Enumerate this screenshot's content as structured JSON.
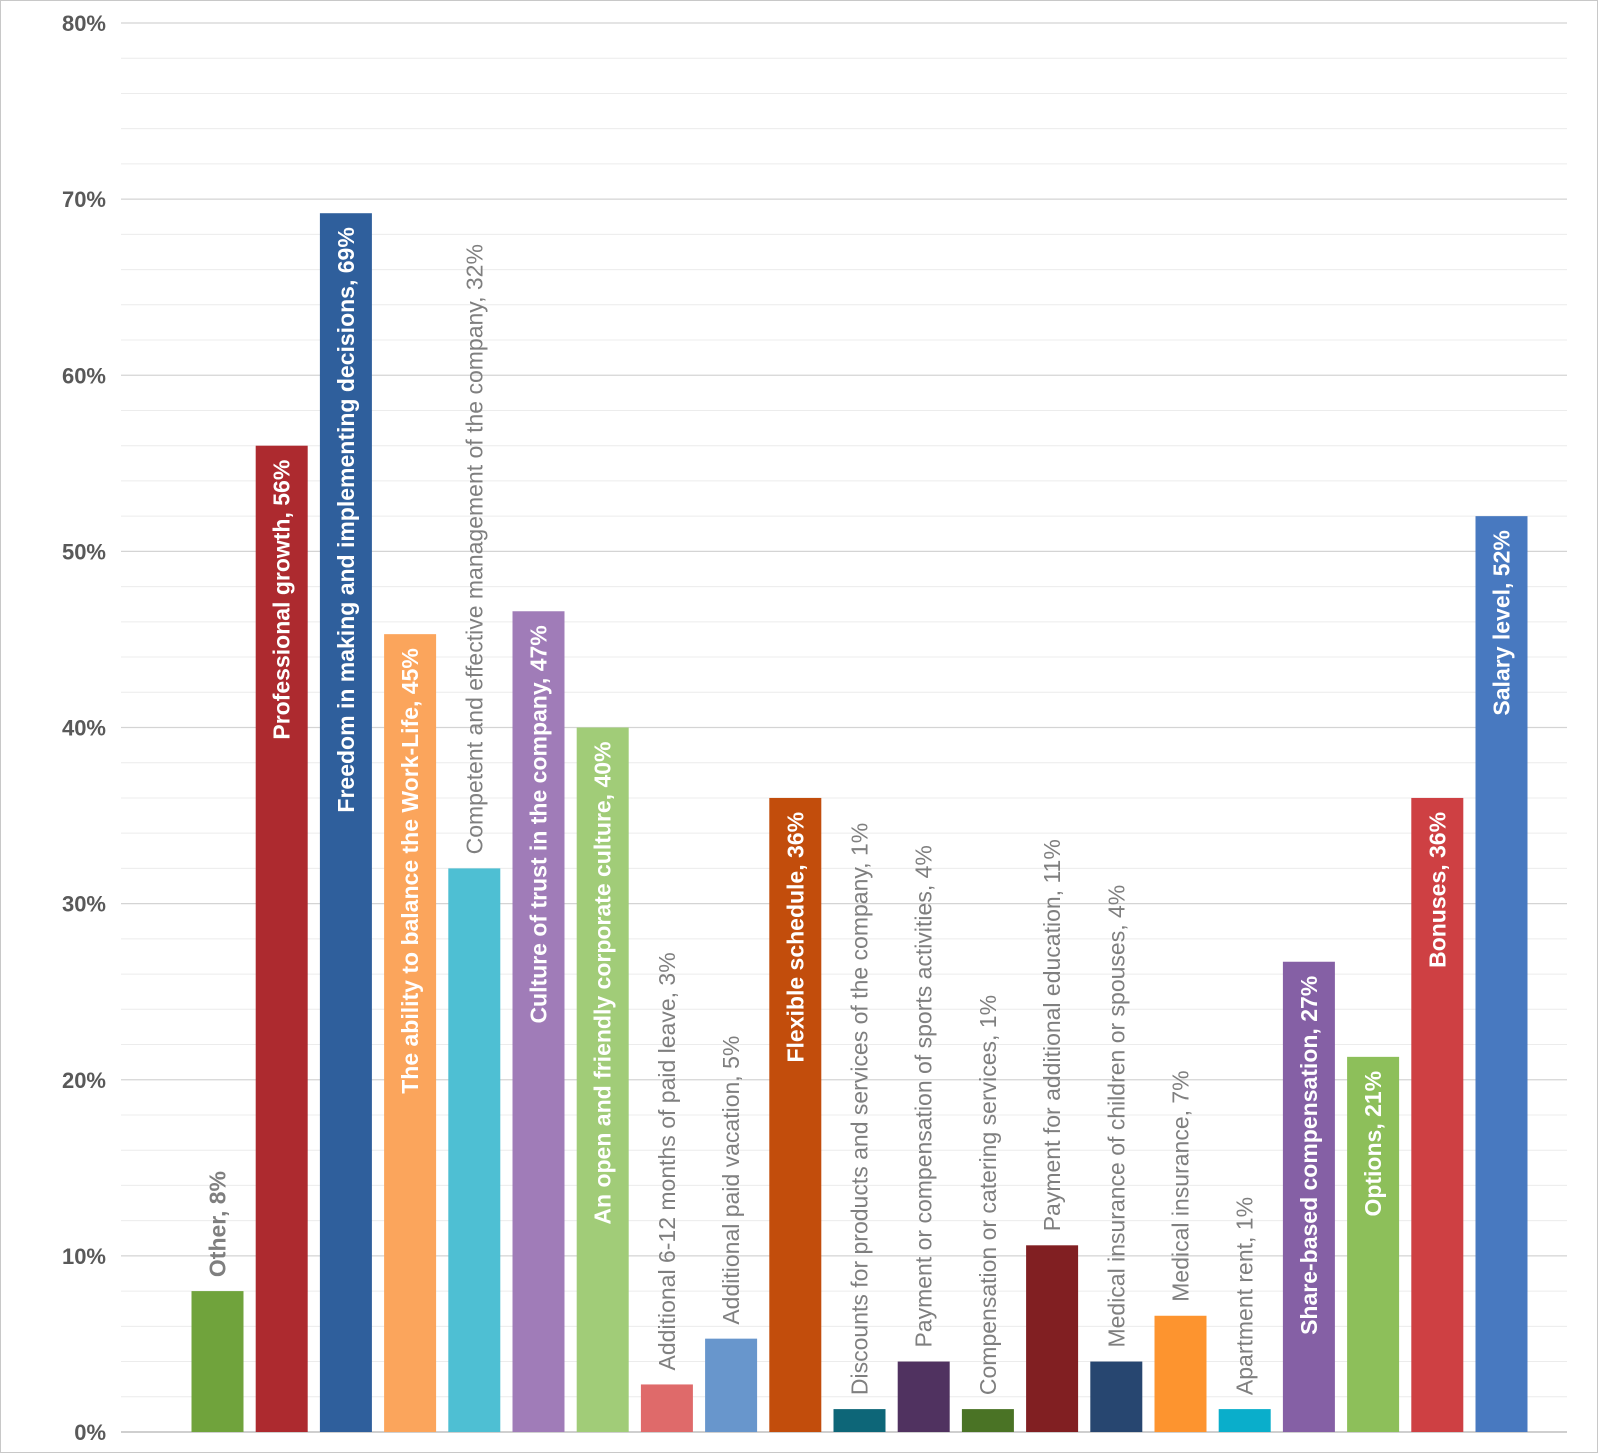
{
  "chart_data": {
    "type": "bar",
    "title": "",
    "xlabel": "",
    "ylabel": "",
    "ylim": [
      0,
      80
    ],
    "y_unit": "%",
    "y_ticks": [
      "0%",
      "10%",
      "20%",
      "30%",
      "40%",
      "50%",
      "60%",
      "70%",
      "80%"
    ],
    "grid": "major and minor horizontal gridlines",
    "data_labels": "category name and value, rotated vertically",
    "categories": [
      "Other",
      "Professional growth",
      "Freedom in making and implementing decisions",
      "The ability to balance the Work-Life",
      "Competent and effective management of the company",
      "Culture of trust in the company",
      "An open and friendly corporate culture",
      "Additional 6-12 months of paid leave",
      "Additional paid vacation",
      "Flexible schedule",
      "Discounts for products and services of the company",
      "Payment or compensation of sports activities",
      "Compensation or catering services",
      "Payment for additional education",
      "Medical insurance of children or spouses",
      "Medical insurance",
      "Apartment rent",
      "Share-based compensation",
      "Options",
      "Bonuses",
      "Salary level"
    ],
    "values": [
      8,
      56,
      69.2,
      45.3,
      32,
      46.6,
      40,
      2.7,
      5.3,
      36,
      1.3,
      4,
      1.3,
      10.6,
      4,
      6.6,
      1.3,
      26.7,
      21.3,
      36,
      52
    ],
    "value_labels": [
      "8%",
      "56%",
      "69%",
      "45%",
      "32%",
      "47%",
      "40%",
      "3%",
      "5%",
      "36%",
      "1%",
      "4%",
      "1%",
      "11%",
      "4%",
      "7%",
      "1%",
      "27%",
      "21%",
      "36%",
      "52%"
    ],
    "label_texts": [
      "Other, 8%",
      "Professional growth, 56%",
      "Freedom in making and implementing decisions, 69%",
      "The ability to balance the Work-Life, 45%",
      "Competent and effective management of the company, 32%",
      "Culture of trust in the company, 47%",
      "An open and friendly corporate culture, 40%",
      "Additional 6-12 months of paid leave, 3%",
      "Additional paid vacation, 5%",
      "Flexible schedule, 36%",
      "Discounts for products and services of the company, 1%",
      "Payment or compensation of sports activities, 4%",
      "Compensation or catering services, 1%",
      "Payment for additional education, 11%",
      "Medical insurance of children or spouses, 4%",
      "Medical insurance, 7%",
      "Apartment rent, 1%",
      "Share-based compensation, 27%",
      "Options, 21%",
      "Bonuses, 36%",
      "Salary level, 52%"
    ],
    "label_inside_bar": [
      false,
      true,
      true,
      true,
      false,
      true,
      true,
      false,
      false,
      true,
      false,
      false,
      false,
      false,
      false,
      false,
      false,
      true,
      true,
      true,
      true
    ],
    "colors": [
      "#70a33c",
      "#ad2a2f",
      "#2f5f9c",
      "#fba55c",
      "#4ebfd3",
      "#a07cb8",
      "#a1cc78",
      "#df6a6a",
      "#6896cc",
      "#c24d0c",
      "#0d6678",
      "#503260",
      "#4a7325",
      "#811f22",
      "#274670",
      "#fd942f",
      "#0aaecb",
      "#8560a5",
      "#8dbf5a",
      "#ce4043",
      "#4879c0"
    ],
    "label_colors": [
      "#7f7f7f",
      "#ffffff",
      "#ffffff",
      "#ffffff",
      "#7f7f7f",
      "#ffffff",
      "#ffffff",
      "#7f7f7f",
      "#7f7f7f",
      "#ffffff",
      "#7f7f7f",
      "#7f7f7f",
      "#7f7f7f",
      "#7f7f7f",
      "#7f7f7f",
      "#7f7f7f",
      "#7f7f7f",
      "#ffffff",
      "#ffffff",
      "#ffffff",
      "#ffffff"
    ],
    "label_bold": [
      true,
      true,
      true,
      true,
      false,
      true,
      true,
      false,
      false,
      true,
      false,
      false,
      false,
      false,
      false,
      false,
      false,
      true,
      true,
      true,
      true
    ]
  }
}
